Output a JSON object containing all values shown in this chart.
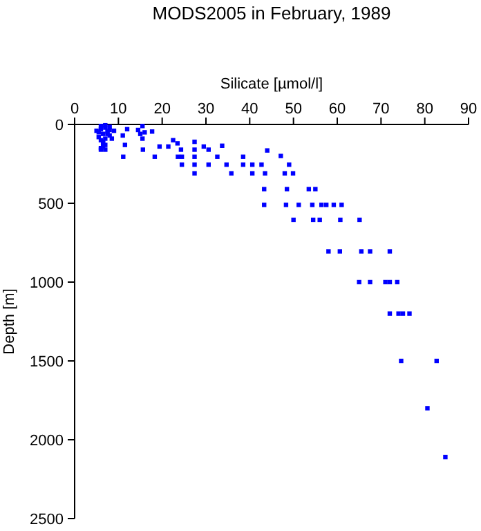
{
  "chart_data": {
    "type": "scatter",
    "title": "MODS2005 in February, 1989",
    "xlabel": "Silicate [µmol/l]",
    "ylabel": "Depth [m]",
    "xlim": [
      0,
      90
    ],
    "xticks": [
      0,
      10,
      20,
      30,
      40,
      50,
      60,
      70,
      80,
      90
    ],
    "ylim": [
      2500,
      0
    ],
    "yticks": [
      0,
      500,
      1000,
      1500,
      2000,
      2500
    ],
    "grid": false,
    "marker": "square",
    "series": [
      {
        "color": "#0000ff",
        "x": [
          5,
          5.5,
          6,
          6.5,
          7,
          7.5,
          8,
          5.5,
          6,
          6.5,
          7,
          8,
          6,
          6.5,
          7,
          6,
          7,
          8,
          6.5,
          7.5,
          6,
          7,
          8.5,
          9,
          12,
          14.5,
          15,
          15.5,
          16,
          15.5,
          17.7,
          11,
          11.5,
          11.1,
          15.6,
          18.3,
          19.4,
          21.4,
          22.5,
          23.5,
          24.3,
          23.6,
          24.5,
          24.5,
          27.4,
          27.4,
          27.4,
          27.4,
          27.4,
          29.5,
          30.6,
          30.6,
          32.6,
          33.7,
          34.7,
          35.8,
          38.5,
          38.5,
          40.6,
          40.6,
          42.7,
          44,
          47.1,
          49,
          48,
          49.9,
          43.5,
          43.3,
          48.5,
          53.5,
          55,
          43.3,
          48.3,
          51.2,
          54.3,
          56.4,
          57.5,
          59.2,
          61,
          50,
          54.5,
          56,
          60.7,
          65.1,
          58,
          60.6,
          65.5,
          67.5,
          72,
          65,
          67.5,
          71,
          72,
          73.7,
          72,
          74,
          75,
          76.5,
          74.6,
          82.7,
          80.6,
          84.7
        ],
        "values": [
          40,
          50,
          30,
          60,
          20,
          45,
          35,
          80,
          100,
          120,
          90,
          70,
          150,
          140,
          130,
          10,
          5,
          15,
          110,
          60,
          160,
          160,
          90,
          40,
          30,
          35,
          60,
          90,
          50,
          10,
          45,
          70,
          130,
          205,
          160,
          205,
          140,
          140,
          100,
          120,
          160,
          205,
          205,
          255,
          110,
          160,
          205,
          255,
          310,
          140,
          160,
          255,
          205,
          135,
          255,
          310,
          205,
          255,
          255,
          310,
          255,
          165,
          200,
          255,
          310,
          310,
          310,
          410,
          410,
          410,
          410,
          510,
          510,
          510,
          510,
          510,
          510,
          510,
          510,
          605,
          605,
          605,
          605,
          605,
          805,
          805,
          805,
          805,
          805,
          1000,
          1000,
          1000,
          1000,
          1000,
          1200,
          1200,
          1200,
          1200,
          1500,
          1500,
          1800,
          2110
        ]
      }
    ]
  }
}
